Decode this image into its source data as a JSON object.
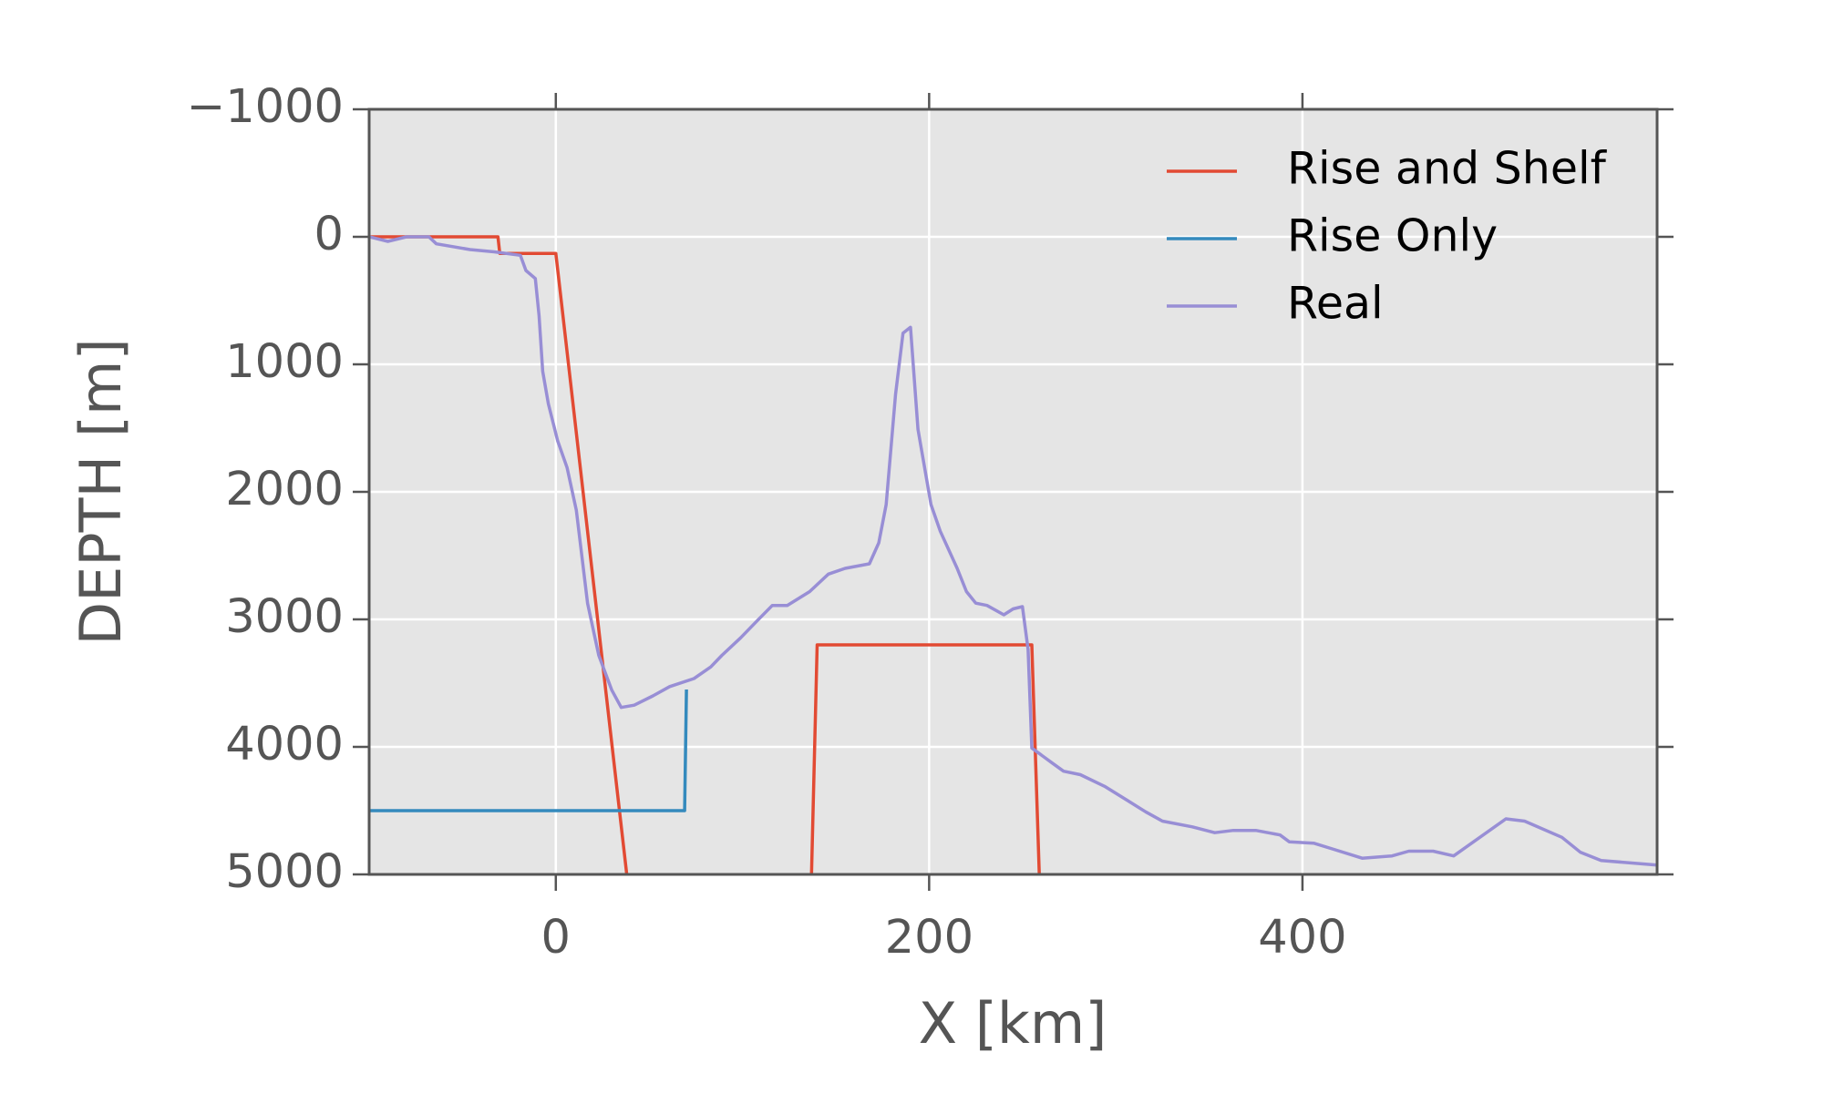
{
  "chart_data": {
    "type": "line",
    "xlabel": "X [km]",
    "ylabel": "DEPTH [m]",
    "xlim": [
      -100,
      590
    ],
    "ylim": [
      5000,
      -1000
    ],
    "xticks": [
      0,
      200,
      400
    ],
    "yticks": [
      {
        "value": -1000,
        "label": "−1000"
      },
      0,
      1000,
      2000,
      3000,
      4000,
      5000
    ],
    "grid": true,
    "legend": "upper right",
    "series": [
      {
        "name": "Rise and Shelf",
        "color": "#E24A33",
        "x": [
          -100,
          -31,
          -30,
          0,
          38,
          null,
          137,
          140,
          255,
          259
        ],
        "values": [
          0,
          0,
          130,
          130,
          5000,
          null,
          5000,
          3200,
          3200,
          5000
        ]
      },
      {
        "name": "Rise Only",
        "color": "#348ABD",
        "x": [
          -100,
          69,
          70
        ],
        "values": [
          4500,
          4500,
          3550
        ]
      },
      {
        "name": "Real",
        "color": "#988ED5",
        "x": [
          -100,
          -90,
          -80,
          -68,
          -64,
          -46,
          -33,
          -19,
          -16,
          -11,
          -9,
          -7,
          -4,
          1,
          6,
          11,
          17,
          23,
          30,
          35,
          42,
          52,
          61,
          74,
          83,
          89,
          99,
          108,
          116,
          124,
          136,
          146,
          155,
          168,
          173,
          177,
          182,
          186,
          190,
          194,
          201,
          206,
          215,
          220,
          225,
          231,
          240,
          245,
          250,
          253,
          255,
          266,
          272,
          281,
          294,
          306,
          316,
          325,
          341,
          353,
          363,
          375,
          388,
          393,
          406,
          416,
          432,
          448,
          457,
          470,
          481,
          509,
          519,
          539,
          549,
          560,
          590
        ],
        "values": [
          0,
          36,
          0,
          0,
          55,
          100,
          118,
          145,
          264,
          327,
          618,
          1055,
          1309,
          1600,
          1809,
          2145,
          2873,
          3282,
          3555,
          3691,
          3673,
          3600,
          3527,
          3464,
          3373,
          3282,
          3145,
          3009,
          2891,
          2891,
          2782,
          2645,
          2600,
          2564,
          2400,
          2100,
          1236,
          755,
          709,
          1509,
          2100,
          2309,
          2600,
          2782,
          2873,
          2891,
          2964,
          2918,
          2900,
          3236,
          4009,
          4127,
          4191,
          4218,
          4309,
          4418,
          4509,
          4582,
          4627,
          4673,
          4655,
          4655,
          4691,
          4745,
          4755,
          4800,
          4873,
          4855,
          4818,
          4818,
          4855,
          4564,
          4582,
          4709,
          4827,
          4891,
          4927
        ]
      }
    ]
  }
}
